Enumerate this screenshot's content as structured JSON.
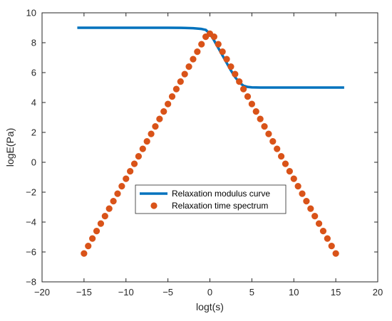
{
  "chart_data": {
    "type": "line",
    "title": "",
    "xlabel": "logt(s)",
    "ylabel": "logE(Pa)",
    "xlim": [
      -20,
      20
    ],
    "ylim": [
      -8,
      10
    ],
    "xticks": [
      -20,
      -15,
      -10,
      -5,
      0,
      5,
      10,
      15,
      20
    ],
    "yticks": [
      -8,
      -6,
      -4,
      -2,
      0,
      2,
      4,
      6,
      8,
      10
    ],
    "xtick_labels": [
      "−20",
      "−15",
      "−10",
      "−5",
      "0",
      "5",
      "10",
      "15",
      "20"
    ],
    "ytick_labels": [
      "−8",
      "−6",
      "−4",
      "−2",
      "0",
      "2",
      "4",
      "6",
      "8",
      "10"
    ],
    "grid": false,
    "legend_position": "center",
    "series": [
      {
        "name": "Relaxation modulus curve",
        "type": "line",
        "color": "#0072BD",
        "x": [
          -15.8,
          -10,
          -5,
          -3,
          -2,
          -1,
          -0.5,
          0,
          0.5,
          1,
          1.5,
          2,
          2.5,
          3,
          3.5,
          4,
          4.5,
          5,
          6,
          8,
          10,
          16
        ],
        "y": [
          9.0,
          9.0,
          9.0,
          8.99,
          8.97,
          8.92,
          8.86,
          8.6,
          8.15,
          7.65,
          7.15,
          6.65,
          6.15,
          5.7,
          5.35,
          5.12,
          5.04,
          5.01,
          5.0,
          5.0,
          5.0,
          5.0
        ]
      },
      {
        "name": "Relaxation time spectrum",
        "type": "scatter",
        "color": "#D95319",
        "x": [
          -15,
          -14.5,
          -14,
          -13.5,
          -13,
          -12.5,
          -12,
          -11.5,
          -11,
          -10.5,
          -10,
          -9.5,
          -9,
          -8.5,
          -8,
          -7.5,
          -7,
          -6.5,
          -6,
          -5.5,
          -5,
          -4.5,
          -4,
          -3.5,
          -3,
          -2.5,
          -2,
          -1.5,
          -1,
          -0.5,
          0,
          0.5,
          1,
          1.5,
          2,
          2.5,
          3,
          3.5,
          4,
          4.5,
          5,
          5.5,
          6,
          6.5,
          7,
          7.5,
          8,
          8.5,
          9,
          9.5,
          10,
          10.5,
          11,
          11.5,
          12,
          12.5,
          13,
          13.5,
          14,
          14.5,
          15
        ],
        "y": [
          -6.1,
          -5.6,
          -5.1,
          -4.6,
          -4.1,
          -3.6,
          -3.1,
          -2.6,
          -2.1,
          -1.6,
          -1.1,
          -0.6,
          -0.1,
          0.4,
          0.9,
          1.4,
          1.9,
          2.4,
          2.9,
          3.4,
          3.9,
          4.4,
          4.9,
          5.4,
          5.9,
          6.4,
          6.9,
          7.4,
          7.9,
          8.4,
          8.6,
          8.4,
          7.9,
          7.4,
          6.9,
          6.4,
          5.9,
          5.4,
          4.9,
          4.4,
          3.9,
          3.4,
          2.9,
          2.4,
          1.9,
          1.4,
          0.9,
          0.4,
          -0.1,
          -0.6,
          -1.1,
          -1.6,
          -2.1,
          -2.6,
          -3.1,
          -3.6,
          -4.1,
          -4.6,
          -5.1,
          -5.6,
          -6.1
        ]
      }
    ]
  }
}
